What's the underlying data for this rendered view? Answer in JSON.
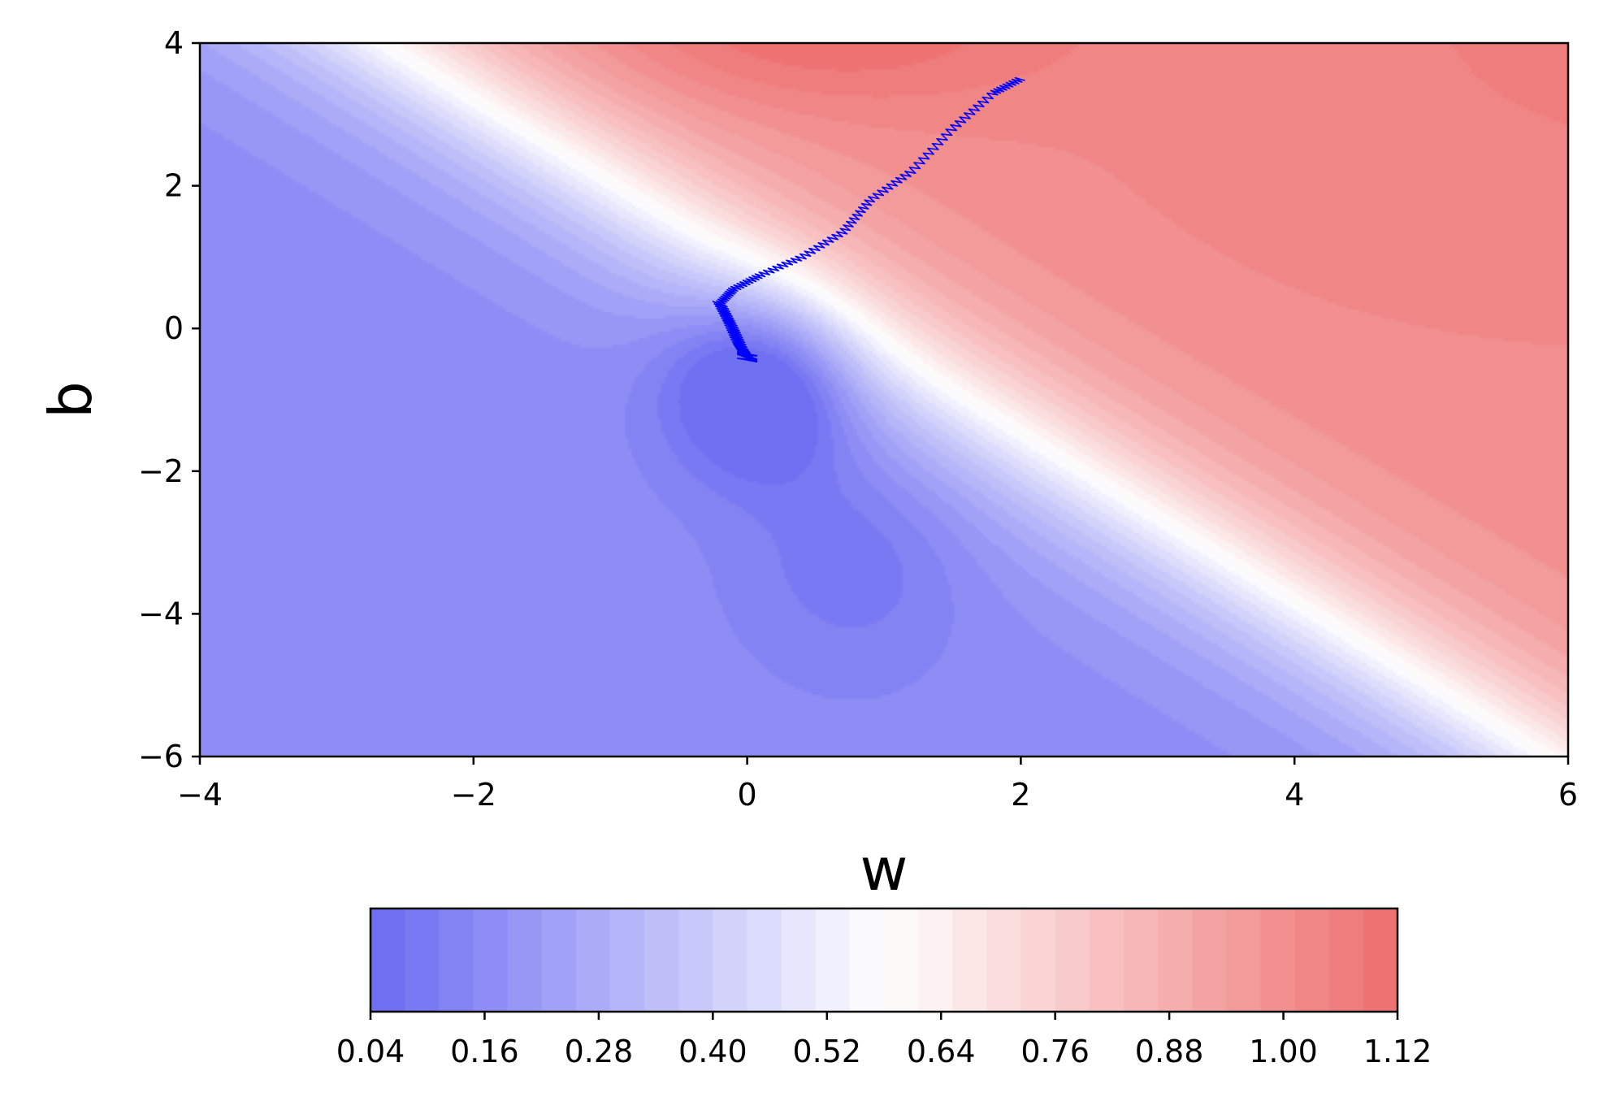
{
  "chart_data": {
    "type": "contour",
    "title": "",
    "xlabel": "w",
    "ylabel": "b",
    "xlim": [
      -4,
      6
    ],
    "ylim": [
      -6,
      4
    ],
    "x_ticks": [
      -4,
      -2,
      0,
      2,
      4,
      6
    ],
    "x_tick_labels": [
      "−4",
      "−2",
      "0",
      "2",
      "4",
      "6"
    ],
    "y_ticks": [
      -6,
      -4,
      -2,
      0,
      2,
      4
    ],
    "y_tick_labels": [
      "−6",
      "−4",
      "−2",
      "0",
      "2",
      "4"
    ],
    "colormap": "bwr",
    "colors": {
      "low": "#6a6af2",
      "mid": "#ffffff",
      "high": "#ee6e6e",
      "path": "#0000ff"
    },
    "levels_min": 0.04,
    "levels_max": 1.12,
    "levels_step": 0.036,
    "colorbar": {
      "orientation": "horizontal",
      "ticks": [
        0.04,
        0.16,
        0.28,
        0.4,
        0.52,
        0.64,
        0.76,
        0.88,
        1.0,
        1.12
      ],
      "tick_labels": [
        "0.04",
        "0.16",
        "0.28",
        "0.40",
        "0.52",
        "0.64",
        "0.76",
        "0.88",
        "1.00",
        "1.12"
      ]
    },
    "surface_minimum": {
      "w": 0.1,
      "b": -0.7
    },
    "trajectory": {
      "start": {
        "w": 2.0,
        "b": 3.5
      },
      "end": {
        "w": 0.0,
        "b": -0.4
      },
      "waypoints": [
        {
          "w": 2.0,
          "b": 3.5
        },
        {
          "w": 1.8,
          "b": 3.3
        },
        {
          "w": 1.5,
          "b": 2.8
        },
        {
          "w": 1.2,
          "b": 2.2
        },
        {
          "w": 0.9,
          "b": 1.8
        },
        {
          "w": 0.7,
          "b": 1.35
        },
        {
          "w": 0.4,
          "b": 1.0
        },
        {
          "w": 0.1,
          "b": 0.75
        },
        {
          "w": -0.1,
          "b": 0.55
        },
        {
          "w": -0.2,
          "b": 0.35
        },
        {
          "w": -0.12,
          "b": 0.05
        },
        {
          "w": -0.05,
          "b": -0.25
        },
        {
          "w": 0.0,
          "b": -0.4
        }
      ]
    }
  }
}
